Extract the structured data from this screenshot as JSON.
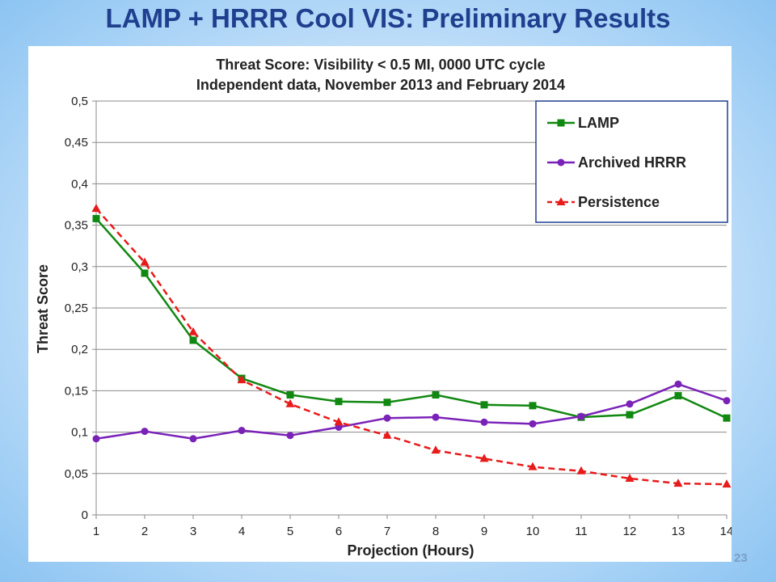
{
  "slide": {
    "title": "LAMP + HRRR Cool VIS: Preliminary Results",
    "page_number": "23"
  },
  "chart_data": {
    "type": "line",
    "title": "Threat Score: Visibility < 0.5 MI, 0000 UTC cycle",
    "subtitle": "Independent data, November 2013 and February 2014",
    "xlabel": "Projection (Hours)",
    "ylabel": "Threat Score",
    "x": [
      1,
      2,
      3,
      4,
      5,
      6,
      7,
      8,
      9,
      10,
      11,
      12,
      13,
      14
    ],
    "x_tick_labels": [
      "1",
      "2",
      "3",
      "4",
      "5",
      "6",
      "7",
      "8",
      "9",
      "10",
      "11",
      "12",
      "13",
      "14"
    ],
    "ylim": [
      0,
      0.5
    ],
    "y_ticks": [
      0,
      0.05,
      0.1,
      0.15,
      0.2,
      0.25,
      0.3,
      0.35,
      0.4,
      0.45,
      0.5
    ],
    "y_tick_labels": [
      "0",
      "0,05",
      "0,1",
      "0,15",
      "0,2",
      "0,25",
      "0,3",
      "0,35",
      "0,4",
      "0,45",
      "0,5"
    ],
    "grid": "horizontal",
    "legend_position": "top-right",
    "series": [
      {
        "name": "LAMP",
        "color": "#118811",
        "marker": "square",
        "line_style": "solid",
        "values": [
          0.358,
          0.292,
          0.211,
          0.165,
          0.145,
          0.137,
          0.136,
          0.145,
          0.133,
          0.132,
          0.118,
          0.121,
          0.144,
          0.117
        ]
      },
      {
        "name": "Archived HRRR",
        "color": "#7a22b8",
        "marker": "circle",
        "line_style": "solid",
        "values": [
          0.092,
          0.101,
          0.092,
          0.102,
          0.096,
          0.106,
          0.117,
          0.118,
          0.112,
          0.11,
          0.119,
          0.134,
          0.158,
          0.138
        ]
      },
      {
        "name": "Persistence",
        "color": "#e81a1a",
        "marker": "triangle",
        "line_style": "dashed",
        "values": [
          0.37,
          0.305,
          0.221,
          0.163,
          0.134,
          0.112,
          0.096,
          0.078,
          0.068,
          0.058,
          0.053,
          0.044,
          0.038,
          0.037
        ]
      }
    ]
  }
}
